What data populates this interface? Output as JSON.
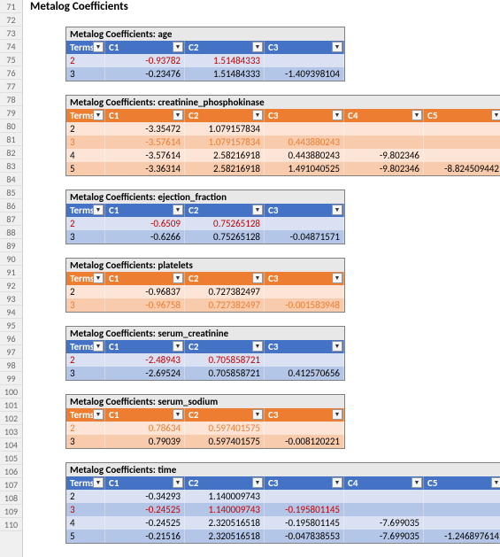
{
  "colors": {
    "blue_header": "#4472c4",
    "blue_row_light": "#d9e1f2",
    "blue_row_dark": "#b4c6e7",
    "orange_header": "#ed7d31",
    "orange_row_light": "#fce4d6",
    "orange_row_dark": "#f8cbad",
    "red_text": "#c00000",
    "orange_text": "#ed7d31",
    "gutter_bg": "#f0f0f0",
    "title_bg": "#e8e8e8"
  },
  "gutter": {
    "start": 71,
    "end": 110
  },
  "main_title": "Metalog Coefficients",
  "dropdown_glyph": "▼",
  "header_term_label": "Terms",
  "tables": [
    {
      "title": "Metalog Coefficients: age",
      "theme": "blue",
      "cols": [
        "C1",
        "C2",
        "C3"
      ],
      "rows": [
        {
          "term": "2",
          "highlight": true,
          "vals": [
            "-0.93782",
            "1.51484333",
            ""
          ]
        },
        {
          "term": "3",
          "highlight": false,
          "vals": [
            "-0.23476",
            "1.51484333",
            "-1.409398104"
          ]
        }
      ]
    },
    {
      "title": "Metalog Coefficients: creatinine_phosphokinase",
      "theme": "orange",
      "cols": [
        "C1",
        "C2",
        "C3",
        "C4",
        "C5"
      ],
      "rows": [
        {
          "term": "2",
          "highlight": false,
          "vals": [
            "-3.35472",
            "1.079157834",
            "",
            "",
            ""
          ]
        },
        {
          "term": "3",
          "highlight": true,
          "vals": [
            "-3.57614",
            "1.079157834",
            "0.443880243",
            "",
            ""
          ]
        },
        {
          "term": "4",
          "highlight": false,
          "vals": [
            "-3.57614",
            "2.58216918",
            "0.443880243",
            "-9.802346",
            ""
          ]
        },
        {
          "term": "5",
          "highlight": false,
          "vals": [
            "-3.36314",
            "2.58216918",
            "1.491040525",
            "-9.802346",
            "-8.824509442"
          ]
        }
      ]
    },
    {
      "title": "Metalog Coefficients: ejection_fraction",
      "theme": "blue",
      "cols": [
        "C1",
        "C2",
        "C3"
      ],
      "rows": [
        {
          "term": "2",
          "highlight": true,
          "vals": [
            "-0.6509",
            "0.75265128",
            ""
          ]
        },
        {
          "term": "3",
          "highlight": false,
          "vals": [
            "-0.6266",
            "0.75265128",
            "-0.04871571"
          ]
        }
      ]
    },
    {
      "title": "Metalog Coefficients: platelets",
      "theme": "orange",
      "cols": [
        "C1",
        "C2",
        "C3"
      ],
      "rows": [
        {
          "term": "2",
          "highlight": false,
          "vals": [
            "-0.96837",
            "0.727382497",
            ""
          ]
        },
        {
          "term": "3",
          "highlight": true,
          "vals": [
            "-0.96758",
            "0.727382497",
            "-0.001583948"
          ]
        }
      ]
    },
    {
      "title": "Metalog Coefficients: serum_creatinine",
      "theme": "blue",
      "cols": [
        "C1",
        "C2",
        "C3"
      ],
      "rows": [
        {
          "term": "2",
          "highlight": true,
          "vals": [
            "-2.48943",
            "0.705858721",
            ""
          ]
        },
        {
          "term": "3",
          "highlight": false,
          "vals": [
            "-2.69524",
            "0.705858721",
            "0.412570656"
          ]
        }
      ]
    },
    {
      "title": "Metalog Coefficients: serum_sodium",
      "theme": "orange",
      "cols": [
        "C1",
        "C2",
        "C3"
      ],
      "rows": [
        {
          "term": "2",
          "highlight": true,
          "vals": [
            "0.78634",
            "0.597401575",
            ""
          ]
        },
        {
          "term": "3",
          "highlight": false,
          "vals": [
            "0.79039",
            "0.597401575",
            "-0.008120221"
          ]
        }
      ]
    },
    {
      "title": "Metalog Coefficients: time",
      "theme": "blue",
      "cols": [
        "C1",
        "C2",
        "C3",
        "C4",
        "C5"
      ],
      "rows": [
        {
          "term": "2",
          "highlight": false,
          "vals": [
            "-0.34293",
            "1.140009743",
            "",
            "",
            ""
          ]
        },
        {
          "term": "3",
          "highlight": true,
          "vals": [
            "-0.24525",
            "1.140009743",
            "-0.195801145",
            "",
            ""
          ]
        },
        {
          "term": "4",
          "highlight": false,
          "vals": [
            "-0.24525",
            "2.320516518",
            "-0.195801145",
            "-7.699035",
            ""
          ]
        },
        {
          "term": "5",
          "highlight": false,
          "vals": [
            "-0.21516",
            "2.320516518",
            "-0.047838553",
            "-7.699035",
            "-1.246897614"
          ]
        }
      ]
    }
  ]
}
